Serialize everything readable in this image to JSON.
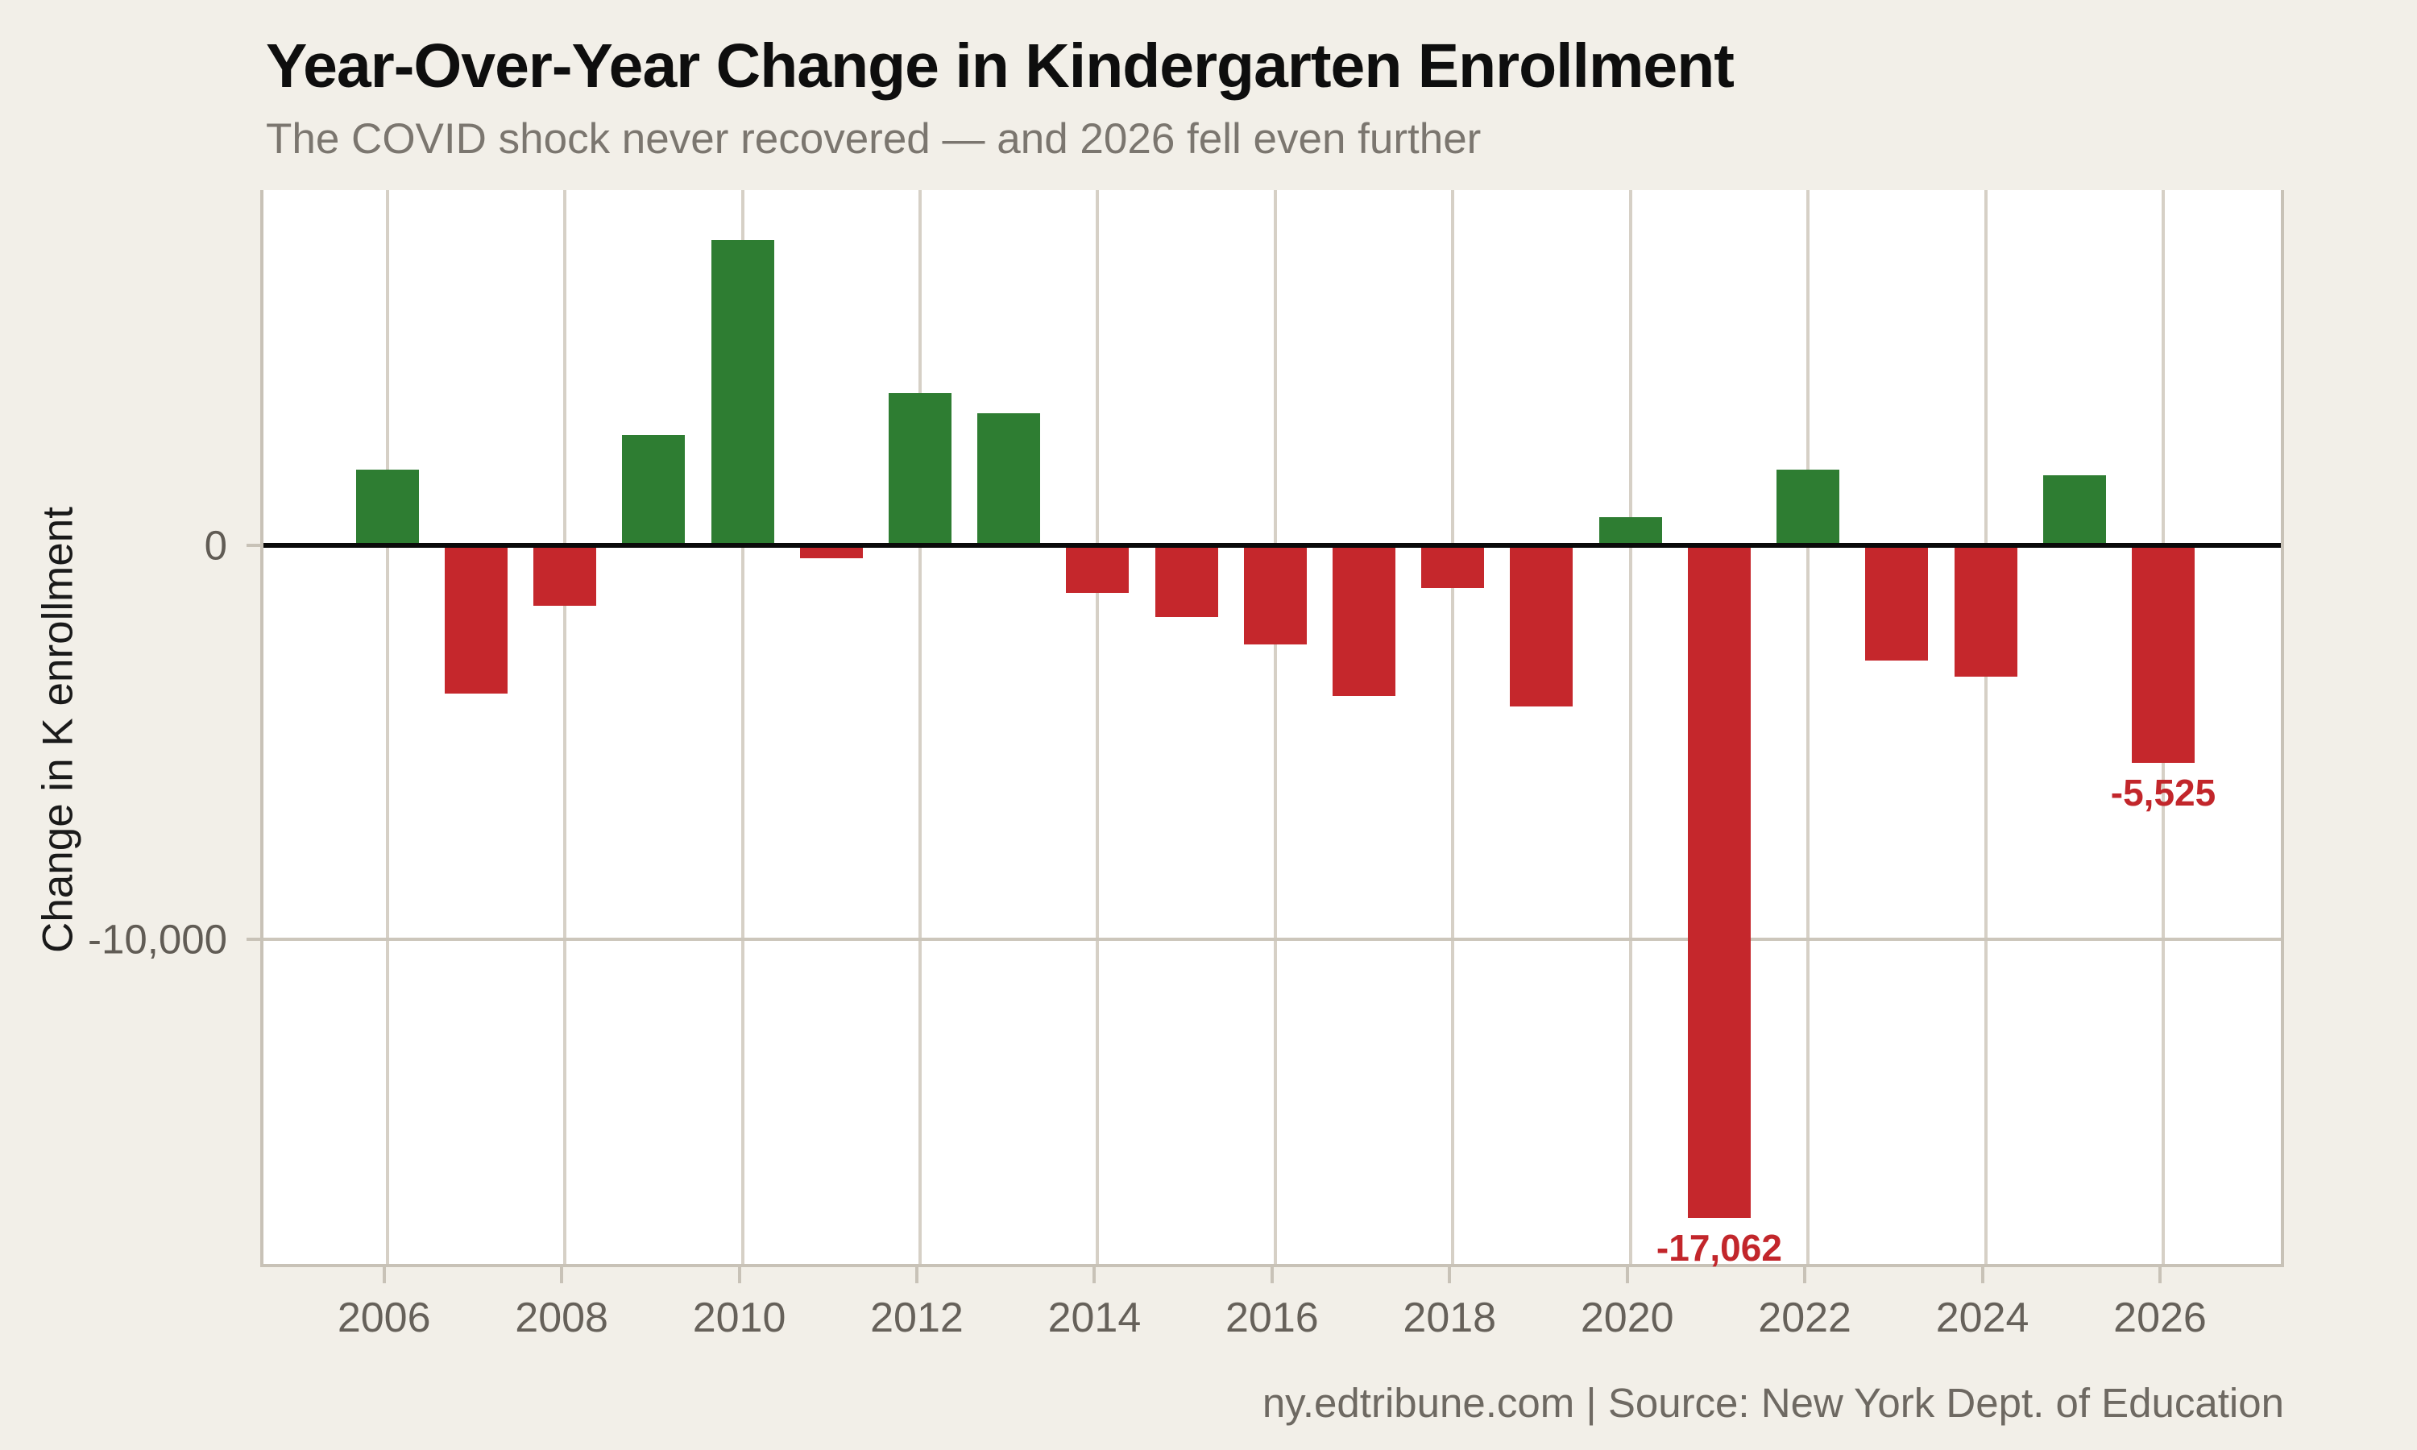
{
  "header": {
    "title": "Year-Over-Year Change in Kindergarten Enrollment",
    "subtitle": "The COVID shock never recovered — and 2026 fell even further"
  },
  "footer": {
    "text": "ny.edtribune.com | Source: New York Dept. of Education"
  },
  "chart_data": {
    "type": "bar",
    "title": "Year-Over-Year Change in Kindergarten Enrollment",
    "subtitle": "The COVID shock never recovered — and 2026 fell even further",
    "xlabel": "",
    "ylabel": "Change in K enrollment",
    "categories": [
      2006,
      2007,
      2008,
      2009,
      2010,
      2011,
      2012,
      2013,
      2014,
      2015,
      2016,
      2017,
      2018,
      2019,
      2020,
      2021,
      2022,
      2023,
      2024,
      2025,
      2026
    ],
    "values": [
      1900,
      -3760,
      -1540,
      2780,
      7730,
      -340,
      3850,
      3330,
      -1220,
      -1820,
      -2530,
      -3830,
      -1090,
      -4100,
      700,
      -17062,
      1920,
      -2930,
      -3330,
      1770,
      -5525
    ],
    "annotations": [
      {
        "year": 2021,
        "text": "-17,062"
      },
      {
        "year": 2026,
        "text": "-5,525"
      }
    ],
    "y_ticks": [
      {
        "value": 0,
        "label": "0"
      },
      {
        "value": -10000,
        "label": "-10,000"
      }
    ],
    "x_ticks": [
      2006,
      2008,
      2010,
      2012,
      2014,
      2016,
      2018,
      2020,
      2022,
      2024,
      2026
    ],
    "ylim": [
      -18300,
      9000
    ],
    "grid": {
      "vertical": "every 2 years",
      "horizontal": "at -10,000 only"
    },
    "legend": "none",
    "colors": {
      "positive": "#2e7d32",
      "negative": "#c5272c",
      "annotation": "#c2262b",
      "background": "#f2efe8",
      "plot_background": "#ffffff",
      "gridline": "#d6d0c6",
      "axis_line": "#c8c2b7",
      "zero_line": "#0a0a0a",
      "tick_label": "#66615a",
      "title": "#0e0e0e",
      "subtitle": "#7b766f"
    }
  }
}
